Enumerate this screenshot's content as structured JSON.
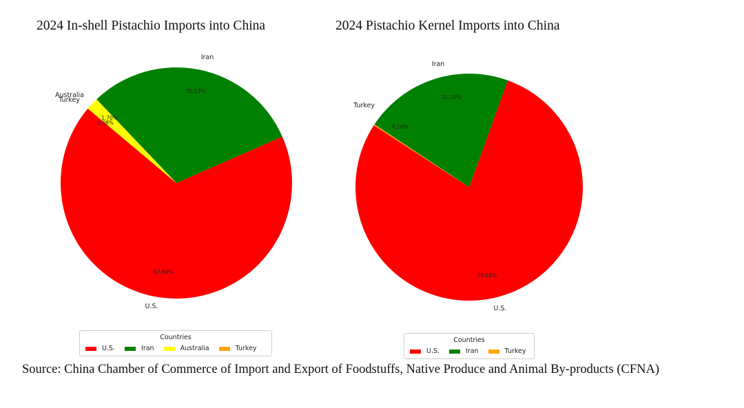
{
  "chart_data": [
    {
      "type": "pie",
      "title": "2024 In-shell Pistachio Imports into China",
      "legend_title": "Countries",
      "legend_position": "bottom",
      "slices": [
        {
          "label": "U.S.",
          "value": 67.69,
          "pct_text": "67.69%",
          "color": "#ff0000",
          "show_label": true
        },
        {
          "label": "Iran",
          "value": 30.53,
          "pct_text": "30.53%",
          "color": "#008000",
          "show_label": true
        },
        {
          "label": "Australia",
          "value": 1.7,
          "pct_text": "1.70%",
          "color": "#ffff00",
          "show_label": true
        },
        {
          "label": "Turkey",
          "value": 0.08,
          "pct_text": "0.08%",
          "color": "#ffa500",
          "show_label": true
        }
      ]
    },
    {
      "type": "pie",
      "title": "2024 Pistachio Kernel Imports into China",
      "legend_title": "Countries",
      "legend_position": "bottom",
      "slices": [
        {
          "label": "U.S.",
          "value": 78.64,
          "pct_text": "78.64%",
          "color": "#ff0000",
          "show_label": true
        },
        {
          "label": "Iran",
          "value": 21.2,
          "pct_text": "21.20%",
          "color": "#008000",
          "show_label": true
        },
        {
          "label": "Turkey",
          "value": 0.16,
          "pct_text": "0.16%",
          "color": "#ffa500",
          "show_label": true
        }
      ]
    }
  ],
  "source_text": "Source: China Chamber of Commerce of Import and Export of Foodstuffs, Native Produce and Animal By-products (CFNA)"
}
